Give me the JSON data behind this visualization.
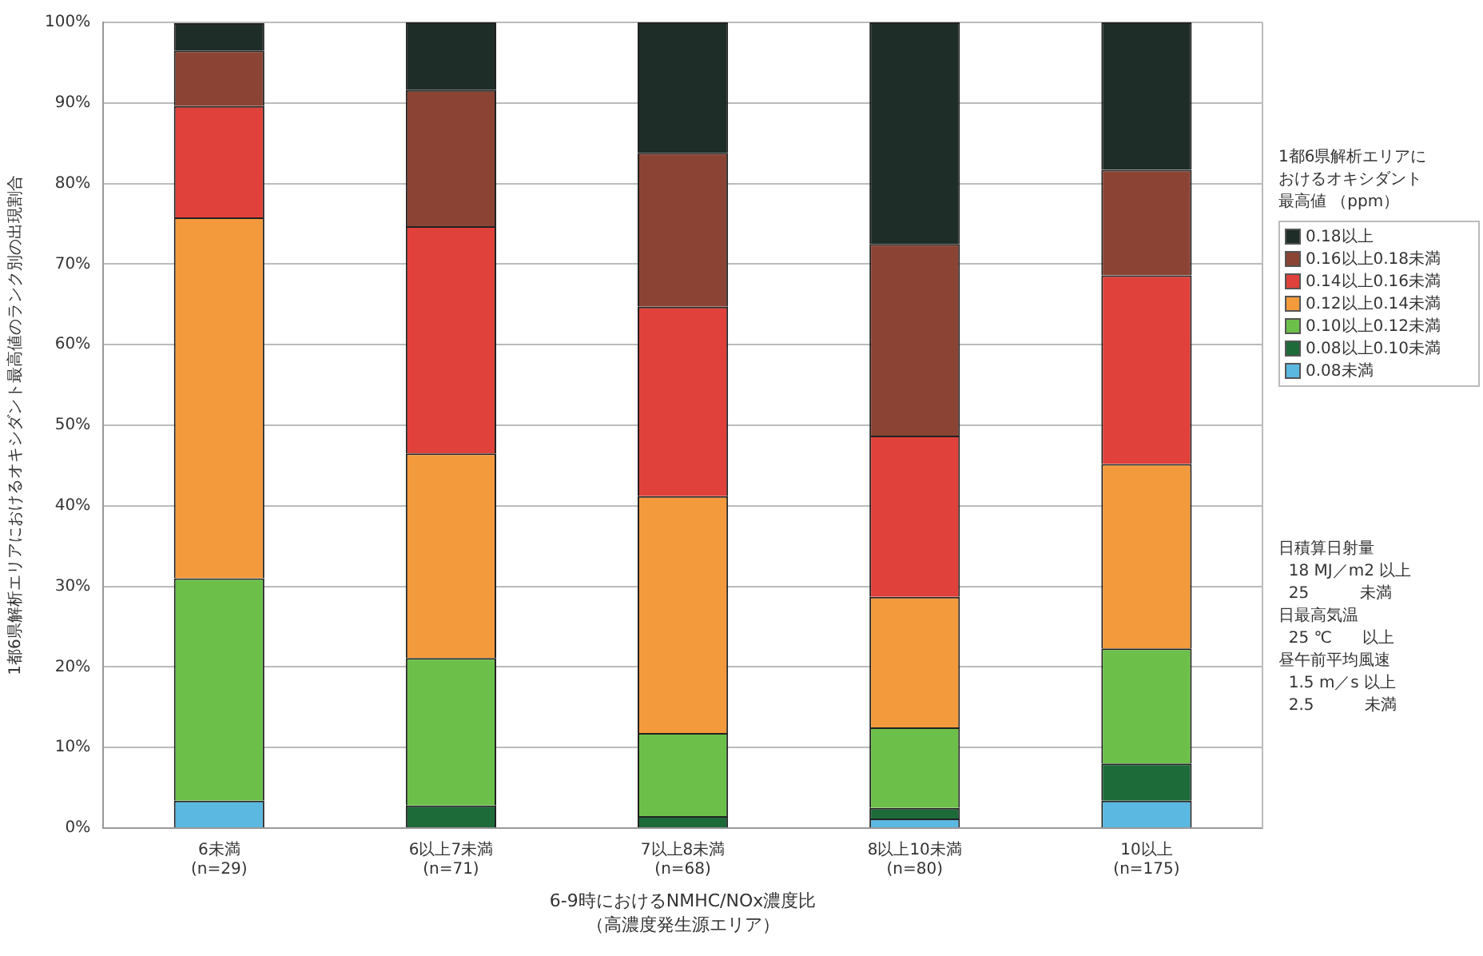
{
  "chart_data": {
    "type": "bar",
    "stacked": true,
    "xlabel": "6-9時におけるNMHC/NOx濃度比（高濃度発生源エリア）",
    "ylabel": "1都6県解析エリアにおけるオキシダント最高値のランク別の出現割合",
    "legend_title": "1都6県解析エリアにおけるオキシダント最高値 （ppm）",
    "categories": [
      "6未満\n(n=29)",
      "6以上7未満\n(n=71)",
      "7以上8未満\n(n=68)",
      "8以上10未満\n(n=80)",
      "10以上\n(n=175)"
    ],
    "series": [
      {
        "name": "0.08未満",
        "color": "#5bb8e0",
        "values": [
          3.4,
          0,
          0,
          1.2,
          3.4
        ]
      },
      {
        "name": "0.08以上0.10未満",
        "color": "#1e6b3a",
        "values": [
          0,
          2.8,
          1.5,
          1.3,
          4.6
        ]
      },
      {
        "name": "0.10以上0.12未満",
        "color": "#6cc04a",
        "values": [
          27.6,
          18.3,
          10.3,
          10.0,
          14.3
        ]
      },
      {
        "name": "0.12以上0.14未満",
        "color": "#f39a3c",
        "values": [
          44.8,
          25.4,
          29.4,
          16.2,
          22.9
        ]
      },
      {
        "name": "0.14以上0.16未満",
        "color": "#e0413a",
        "values": [
          13.8,
          28.2,
          23.5,
          20.0,
          23.4
        ]
      },
      {
        "name": "0.16以上0.18未満",
        "color": "#8b4434",
        "values": [
          6.9,
          16.9,
          19.1,
          23.8,
          13.1
        ]
      },
      {
        "name": "0.18以上",
        "color": "#1f2d28",
        "values": [
          3.4,
          8.4,
          16.2,
          27.5,
          18.3
        ]
      }
    ],
    "ylim": [
      0,
      100
    ],
    "yticks": [
      {
        "value": 0,
        "label": "0%"
      },
      {
        "value": 10,
        "label": "10%"
      },
      {
        "value": 20,
        "label": "20%"
      },
      {
        "value": 30,
        "label": "30%"
      },
      {
        "value": 40,
        "label": "40%"
      },
      {
        "value": 50,
        "label": "50%"
      },
      {
        "value": 60,
        "label": "60%"
      },
      {
        "value": 70,
        "label": "70%"
      },
      {
        "value": 80,
        "label": "80%"
      },
      {
        "value": 90,
        "label": "90%"
      },
      {
        "value": 100,
        "label": "100%"
      }
    ],
    "grid": "y",
    "legend": "right",
    "annotations": [
      "日積算日射量",
      "  18 MJ／m2 以上",
      "  25          未満",
      "日最高気温",
      "  25 ℃      以上",
      "昼午前平均風速",
      "  1.5 m／s 以上",
      "  2.5          未満"
    ]
  }
}
